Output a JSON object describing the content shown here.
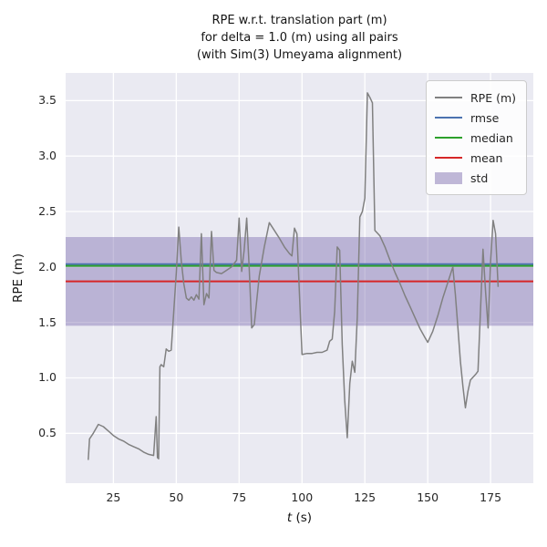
{
  "figure": {
    "title_lines": [
      "RPE w.r.t. translation part (m)",
      "for delta = 1.0 (m) using all pairs",
      "(with Sim(3) Umeyama alignment)"
    ],
    "xlabel_math": "t",
    "xlabel_rest": " (s)",
    "ylabel": "RPE (m)"
  },
  "style": {
    "plot_bg": "#eaeaf2",
    "grid_color": "#ffffff",
    "tick_color": "#262626"
  },
  "chart_data": {
    "type": "line",
    "title": "RPE w.r.t. translation part (m) for delta = 1.0 (m) using all pairs (with Sim(3) Umeyama alignment)",
    "xlabel": "t (s)",
    "ylabel": "RPE (m)",
    "xlim": [
      6,
      192
    ],
    "ylim": [
      0.05,
      3.75
    ],
    "x_ticks": [
      25,
      50,
      75,
      100,
      125,
      150,
      175
    ],
    "y_ticks": [
      0.5,
      1.0,
      1.5,
      2.0,
      2.5,
      3.0,
      3.5
    ],
    "grid": true,
    "legend_position": "upper right",
    "series": [
      {
        "name": "RPE (m)",
        "color": "#808080",
        "points": [
          [
            15,
            0.26
          ],
          [
            15.5,
            0.45
          ],
          [
            17,
            0.5
          ],
          [
            19,
            0.58
          ],
          [
            21,
            0.56
          ],
          [
            23,
            0.52
          ],
          [
            25,
            0.48
          ],
          [
            27,
            0.45
          ],
          [
            29,
            0.43
          ],
          [
            31,
            0.4
          ],
          [
            33,
            0.38
          ],
          [
            35,
            0.36
          ],
          [
            37,
            0.33
          ],
          [
            39,
            0.31
          ],
          [
            41,
            0.3
          ],
          [
            42,
            0.65
          ],
          [
            42.5,
            0.28
          ],
          [
            43,
            0.27
          ],
          [
            43.5,
            1.1
          ],
          [
            44,
            1.12
          ],
          [
            45,
            1.1
          ],
          [
            46,
            1.26
          ],
          [
            47,
            1.24
          ],
          [
            48,
            1.25
          ],
          [
            49,
            1.6
          ],
          [
            50,
            1.95
          ],
          [
            51,
            2.36
          ],
          [
            52,
            2.05
          ],
          [
            53,
            1.85
          ],
          [
            54,
            1.72
          ],
          [
            55,
            1.7
          ],
          [
            56,
            1.73
          ],
          [
            57,
            1.7
          ],
          [
            58,
            1.75
          ],
          [
            59,
            1.71
          ],
          [
            60,
            2.3
          ],
          [
            61,
            1.66
          ],
          [
            62,
            1.76
          ],
          [
            63,
            1.72
          ],
          [
            64,
            2.32
          ],
          [
            65,
            1.97
          ],
          [
            66,
            1.95
          ],
          [
            68,
            1.94
          ],
          [
            70,
            1.97
          ],
          [
            72,
            2.0
          ],
          [
            74,
            2.06
          ],
          [
            75,
            2.44
          ],
          [
            76,
            1.96
          ],
          [
            77,
            2.15
          ],
          [
            78,
            2.44
          ],
          [
            79,
            2.0
          ],
          [
            80,
            1.45
          ],
          [
            81,
            1.48
          ],
          [
            83,
            1.92
          ],
          [
            85,
            2.18
          ],
          [
            87,
            2.4
          ],
          [
            89,
            2.33
          ],
          [
            91,
            2.26
          ],
          [
            93,
            2.18
          ],
          [
            95,
            2.12
          ],
          [
            96,
            2.1
          ],
          [
            97,
            2.35
          ],
          [
            98,
            2.3
          ],
          [
            99,
            1.75
          ],
          [
            100,
            1.21
          ],
          [
            102,
            1.22
          ],
          [
            104,
            1.22
          ],
          [
            106,
            1.23
          ],
          [
            108,
            1.23
          ],
          [
            110,
            1.25
          ],
          [
            111,
            1.33
          ],
          [
            112,
            1.35
          ],
          [
            113,
            1.6
          ],
          [
            114,
            2.18
          ],
          [
            115,
            2.15
          ],
          [
            116,
            1.3
          ],
          [
            117,
            0.8
          ],
          [
            118,
            0.46
          ],
          [
            119,
            0.95
          ],
          [
            120,
            1.15
          ],
          [
            121,
            1.05
          ],
          [
            122,
            1.55
          ],
          [
            123,
            2.45
          ],
          [
            124,
            2.5
          ],
          [
            125,
            2.62
          ],
          [
            126,
            3.57
          ],
          [
            127,
            3.53
          ],
          [
            128,
            3.48
          ],
          [
            129,
            2.33
          ],
          [
            131,
            2.28
          ],
          [
            133,
            2.18
          ],
          [
            135,
            2.06
          ],
          [
            137,
            1.95
          ],
          [
            139,
            1.85
          ],
          [
            141,
            1.74
          ],
          [
            143,
            1.64
          ],
          [
            145,
            1.54
          ],
          [
            147,
            1.44
          ],
          [
            149,
            1.36
          ],
          [
            150,
            1.32
          ],
          [
            152,
            1.42
          ],
          [
            154,
            1.56
          ],
          [
            156,
            1.72
          ],
          [
            158,
            1.86
          ],
          [
            160,
            2.0
          ],
          [
            161,
            1.75
          ],
          [
            162,
            1.45
          ],
          [
            163,
            1.15
          ],
          [
            164,
            0.92
          ],
          [
            165,
            0.73
          ],
          [
            166,
            0.88
          ],
          [
            167,
            0.98
          ],
          [
            169,
            1.03
          ],
          [
            170,
            1.06
          ],
          [
            171,
            1.62
          ],
          [
            172,
            2.16
          ],
          [
            173,
            1.78
          ],
          [
            174,
            1.45
          ],
          [
            175,
            2.05
          ],
          [
            176,
            2.42
          ],
          [
            177,
            2.3
          ],
          [
            178,
            1.82
          ]
        ]
      }
    ],
    "stat_lines": [
      {
        "name": "rmse",
        "value": 2.025,
        "color": "#4c72b0"
      },
      {
        "name": "median",
        "value": 2.01,
        "color": "#2ca02c"
      },
      {
        "name": "mean",
        "value": 1.87,
        "color": "#d62728"
      }
    ],
    "band": {
      "name": "std",
      "low": 1.47,
      "high": 2.27,
      "color": "#8172b2",
      "alpha": 0.45
    },
    "legend_items": [
      {
        "label": "RPE (m)",
        "type": "line",
        "color": "#808080",
        "alpha": 1
      },
      {
        "label": "rmse",
        "type": "line",
        "color": "#4c72b0",
        "alpha": 1
      },
      {
        "label": "median",
        "type": "line",
        "color": "#2ca02c",
        "alpha": 1
      },
      {
        "label": "mean",
        "type": "line",
        "color": "#d62728",
        "alpha": 1
      },
      {
        "label": "std",
        "type": "patch",
        "color": "#8172b2",
        "alpha": 0.5
      }
    ]
  }
}
